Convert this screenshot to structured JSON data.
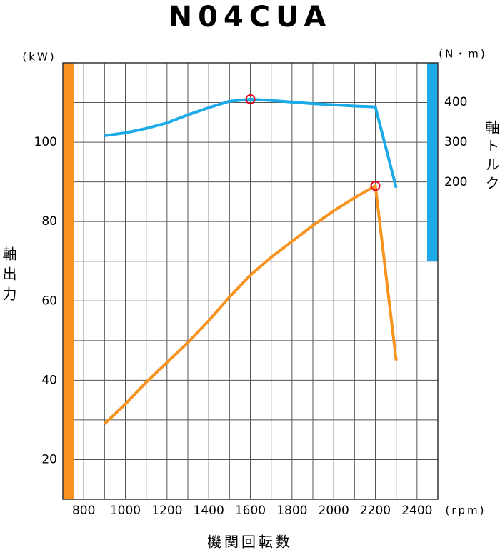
{
  "chart_data": {
    "type": "line",
    "title": "N04CUA",
    "y_label": "(kW)",
    "y2_label": "(N・m)",
    "y_title": "軸出力",
    "y2_title": "軸トルク",
    "x_title": "機関回転数",
    "x_unit": "(rpm)",
    "x": [
      900,
      1000,
      1100,
      1200,
      1300,
      1400,
      1500,
      1600,
      1700,
      1800,
      1900,
      2000,
      2100,
      2200,
      2300
    ],
    "series": [
      {
        "name": "軸出力",
        "color": "#f7931e",
        "axis": "y",
        "marked": 13,
        "values": [
          29,
          34,
          39.5,
          44.5,
          49.5,
          55,
          61,
          66.5,
          71,
          75,
          79,
          82.7,
          86,
          89,
          45
        ]
      },
      {
        "name": "軸トルク",
        "color": "#1cabe8",
        "axis": "y2",
        "marked": 7,
        "values": [
          316,
          323,
          334,
          348,
          368,
          386,
          402,
          407,
          404,
          400,
          396,
          393,
          390,
          388,
          186
        ]
      }
    ],
    "xlim": [
      700,
      2500
    ],
    "xticks": [
      800,
      1000,
      1200,
      1400,
      1600,
      1800,
      2000,
      2200,
      2400
    ],
    "xgrid": [
      800,
      900,
      1000,
      1100,
      1200,
      1300,
      1400,
      1500,
      1600,
      1700,
      1800,
      1900,
      2000,
      2100,
      2200,
      2300,
      2400
    ],
    "ylim": [
      10,
      120
    ],
    "yticks": [
      20,
      40,
      60,
      80,
      100
    ],
    "ygrid": [
      20,
      30,
      40,
      50,
      60,
      70,
      80,
      90,
      100,
      110
    ],
    "y2lim": [
      -593,
      498
    ],
    "y2ticks": [
      200,
      300,
      400
    ]
  }
}
